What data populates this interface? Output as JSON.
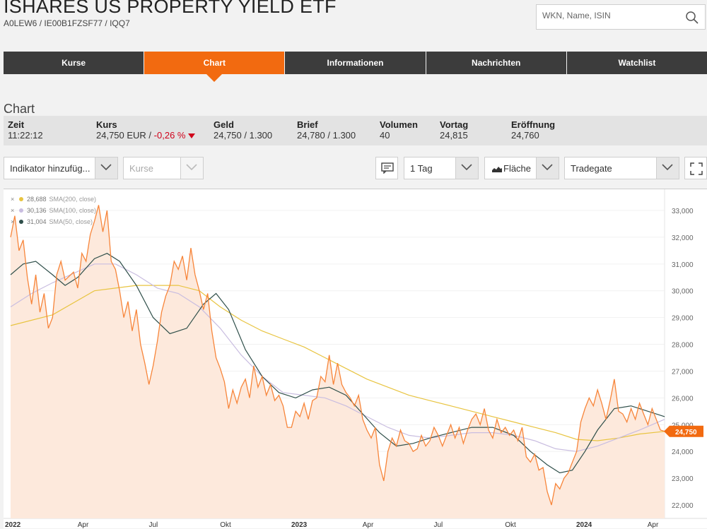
{
  "header": {
    "title": "ISHARES US PROPERTY YIELD ETF",
    "ids": "A0LEW6 /  IE00B1FZSF77  / IQQ7",
    "search_placeholder": "WKN, Name, ISIN"
  },
  "tabs": [
    {
      "label": "Kurse",
      "active": false
    },
    {
      "label": "Chart",
      "active": true
    },
    {
      "label": "Informationen",
      "active": false
    },
    {
      "label": "Nachrichten",
      "active": false
    },
    {
      "label": "Watchlist",
      "active": false
    }
  ],
  "section_title": "Chart",
  "quote": {
    "zeit_label": "Zeit",
    "zeit": "11:22:12",
    "kurs_label": "Kurs",
    "kurs": "24,750 EUR /",
    "kurs_change": "-0,26 %",
    "geld_label": "Geld",
    "geld": "24,750 / 1.300",
    "brief_label": "Brief",
    "brief": "24,780 / 1.300",
    "volumen_label": "Volumen",
    "volumen": "40",
    "vortag_label": "Vortag",
    "vortag": "24,815",
    "eroeffnung_label": "Eröffnung",
    "eroeffnung": "24,760"
  },
  "controls": {
    "indicator": "Indikator hinzufüg...",
    "kurse": "Kurse",
    "period": "1 Tag",
    "chart_type": "Fläche",
    "exchange": "Tradegate"
  },
  "legend": [
    {
      "value": "28,688",
      "name": "SMA(200, close)",
      "color": "#e8c440"
    },
    {
      "value": "30,136",
      "name": "SMA(100, close)",
      "color": "#c9bde0"
    },
    {
      "value": "31,004",
      "name": "SMA(50, close)",
      "color": "#2f4f4a"
    }
  ],
  "chart_data": {
    "type": "area",
    "x_ticks": [
      "2022",
      "Apr",
      "Jul",
      "Okt",
      "2023",
      "Apr",
      "Jul",
      "Okt",
      "2024",
      "Apr"
    ],
    "y_ticks": [
      "33,000",
      "32,000",
      "31,000",
      "30,000",
      "29,000",
      "28,000",
      "27,000",
      "26,000",
      "25,000",
      "24,000",
      "23,000",
      "22,000"
    ],
    "ylim": [
      21.6,
      33.4
    ],
    "xlim": [
      0,
      2.35
    ],
    "last_price_label": "24,750",
    "colors": {
      "price": "#f7853a",
      "area": "#fde9dc",
      "sma200": "#e8c440",
      "sma100": "#c9bde0",
      "sma50": "#2f4f4a",
      "badge": "#f26a10"
    },
    "price": [
      [
        0.0,
        32.0
      ],
      [
        0.01,
        32.8
      ],
      [
        0.02,
        31.5
      ],
      [
        0.03,
        31.9
      ],
      [
        0.04,
        30.5
      ],
      [
        0.05,
        29.5
      ],
      [
        0.06,
        30.6
      ],
      [
        0.07,
        29.2
      ],
      [
        0.08,
        29.9
      ],
      [
        0.09,
        28.6
      ],
      [
        0.1,
        29.0
      ],
      [
        0.11,
        30.6
      ],
      [
        0.12,
        31.1
      ],
      [
        0.13,
        30.4
      ],
      [
        0.15,
        30.7
      ],
      [
        0.16,
        30.1
      ],
      [
        0.17,
        31.4
      ],
      [
        0.18,
        31.1
      ],
      [
        0.19,
        32.1
      ],
      [
        0.2,
        32.6
      ],
      [
        0.21,
        33.2
      ],
      [
        0.22,
        32.2
      ],
      [
        0.23,
        33.0
      ],
      [
        0.24,
        31.1
      ],
      [
        0.25,
        30.8
      ],
      [
        0.26,
        30.0
      ],
      [
        0.27,
        29.0
      ],
      [
        0.28,
        29.6
      ],
      [
        0.29,
        28.5
      ],
      [
        0.3,
        29.3
      ],
      [
        0.31,
        28.0
      ],
      [
        0.32,
        27.3
      ],
      [
        0.33,
        26.5
      ],
      [
        0.34,
        27.2
      ],
      [
        0.35,
        28.1
      ],
      [
        0.36,
        29.2
      ],
      [
        0.37,
        29.8
      ],
      [
        0.38,
        30.2
      ],
      [
        0.39,
        31.1
      ],
      [
        0.4,
        30.8
      ],
      [
        0.41,
        31.3
      ],
      [
        0.42,
        30.4
      ],
      [
        0.43,
        31.6
      ],
      [
        0.44,
        30.6
      ],
      [
        0.45,
        30.0
      ],
      [
        0.46,
        29.3
      ],
      [
        0.47,
        29.9
      ],
      [
        0.48,
        28.5
      ],
      [
        0.49,
        27.5
      ],
      [
        0.5,
        27.1
      ],
      [
        0.51,
        26.6
      ],
      [
        0.52,
        25.6
      ],
      [
        0.53,
        26.3
      ],
      [
        0.54,
        25.8
      ],
      [
        0.55,
        26.4
      ],
      [
        0.56,
        26.7
      ],
      [
        0.57,
        26.0
      ],
      [
        0.58,
        27.2
      ],
      [
        0.59,
        26.4
      ],
      [
        0.6,
        26.8
      ],
      [
        0.61,
        26.1
      ],
      [
        0.62,
        26.5
      ],
      [
        0.63,
        25.9
      ],
      [
        0.64,
        26.1
      ],
      [
        0.65,
        25.7
      ],
      [
        0.66,
        24.9
      ],
      [
        0.67,
        24.9
      ],
      [
        0.68,
        25.5
      ],
      [
        0.69,
        25.3
      ],
      [
        0.7,
        25.8
      ],
      [
        0.71,
        25.2
      ],
      [
        0.72,
        25.9
      ],
      [
        0.73,
        26.0
      ],
      [
        0.74,
        26.8
      ],
      [
        0.75,
        26.6
      ],
      [
        0.76,
        27.6
      ],
      [
        0.77,
        26.5
      ],
      [
        0.78,
        27.3
      ],
      [
        0.79,
        26.5
      ],
      [
        0.8,
        26.2
      ],
      [
        0.81,
        26.0
      ],
      [
        0.82,
        25.7
      ],
      [
        0.83,
        26.1
      ],
      [
        0.84,
        25.2
      ],
      [
        0.85,
        24.8
      ],
      [
        0.86,
        24.5
      ],
      [
        0.87,
        24.9
      ],
      [
        0.88,
        23.5
      ],
      [
        0.89,
        22.9
      ],
      [
        0.9,
        24.0
      ],
      [
        0.91,
        24.5
      ],
      [
        0.92,
        24.2
      ],
      [
        0.93,
        24.8
      ],
      [
        0.94,
        24.4
      ],
      [
        0.95,
        24.3
      ],
      [
        0.96,
        24.0
      ],
      [
        0.97,
        24.1
      ],
      [
        0.98,
        24.6
      ],
      [
        0.99,
        24.2
      ],
      [
        1.0,
        24.4
      ],
      [
        1.01,
        24.9
      ],
      [
        1.02,
        24.6
      ],
      [
        1.03,
        24.2
      ],
      [
        1.04,
        24.6
      ],
      [
        1.05,
        25.0
      ],
      [
        1.06,
        24.5
      ],
      [
        1.07,
        24.9
      ],
      [
        1.08,
        24.3
      ],
      [
        1.09,
        24.8
      ],
      [
        1.1,
        25.2
      ],
      [
        1.11,
        25.4
      ],
      [
        1.12,
        25.0
      ],
      [
        1.13,
        25.6
      ],
      [
        1.14,
        24.8
      ],
      [
        1.15,
        24.5
      ],
      [
        1.16,
        25.2
      ],
      [
        1.17,
        24.7
      ],
      [
        1.18,
        24.9
      ],
      [
        1.19,
        24.6
      ],
      [
        1.2,
        24.8
      ],
      [
        1.21,
        24.4
      ],
      [
        1.22,
        24.9
      ],
      [
        1.23,
        23.8
      ],
      [
        1.24,
        23.6
      ],
      [
        1.25,
        23.9
      ],
      [
        1.26,
        23.3
      ],
      [
        1.27,
        23.4
      ],
      [
        1.28,
        22.5
      ],
      [
        1.29,
        22.0
      ],
      [
        1.3,
        22.8
      ],
      [
        1.31,
        22.6
      ],
      [
        1.32,
        23.0
      ],
      [
        1.33,
        23.2
      ],
      [
        1.34,
        23.6
      ],
      [
        1.35,
        24.0
      ],
      [
        1.36,
        25.1
      ],
      [
        1.37,
        25.6
      ],
      [
        1.38,
        26.0
      ],
      [
        1.39,
        25.7
      ],
      [
        1.4,
        26.3
      ],
      [
        1.41,
        25.8
      ],
      [
        1.42,
        25.2
      ],
      [
        1.43,
        25.9
      ],
      [
        1.44,
        26.7
      ],
      [
        1.45,
        25.5
      ],
      [
        1.46,
        25.4
      ],
      [
        1.47,
        25.1
      ],
      [
        1.48,
        25.6
      ],
      [
        1.49,
        25.2
      ],
      [
        1.5,
        25.8
      ],
      [
        1.51,
        25.4
      ],
      [
        1.52,
        25.0
      ],
      [
        1.53,
        25.6
      ],
      [
        1.54,
        25.2
      ],
      [
        1.55,
        24.8
      ],
      [
        1.56,
        24.75
      ]
    ],
    "sma200": [
      [
        0.0,
        28.7
      ],
      [
        0.1,
        29.1
      ],
      [
        0.2,
        30.0
      ],
      [
        0.25,
        30.1
      ],
      [
        0.3,
        30.2
      ],
      [
        0.4,
        30.2
      ],
      [
        0.45,
        30.0
      ],
      [
        0.5,
        29.4
      ],
      [
        0.55,
        28.9
      ],
      [
        0.6,
        28.5
      ],
      [
        0.65,
        28.2
      ],
      [
        0.7,
        27.9
      ],
      [
        0.75,
        27.5
      ],
      [
        0.8,
        27.1
      ],
      [
        0.85,
        26.7
      ],
      [
        0.9,
        26.4
      ],
      [
        0.95,
        26.1
      ],
      [
        1.0,
        25.9
      ],
      [
        1.05,
        25.7
      ],
      [
        1.1,
        25.5
      ],
      [
        1.15,
        25.3
      ],
      [
        1.2,
        25.1
      ],
      [
        1.25,
        24.9
      ],
      [
        1.3,
        24.7
      ],
      [
        1.35,
        24.45
      ],
      [
        1.4,
        24.4
      ],
      [
        1.45,
        24.5
      ],
      [
        1.5,
        24.65
      ],
      [
        1.56,
        24.75
      ]
    ],
    "sma100": [
      [
        0.0,
        29.4
      ],
      [
        0.05,
        29.9
      ],
      [
        0.1,
        30.3
      ],
      [
        0.2,
        31.0
      ],
      [
        0.25,
        31.0
      ],
      [
        0.3,
        30.6
      ],
      [
        0.35,
        30.1
      ],
      [
        0.4,
        29.9
      ],
      [
        0.45,
        29.4
      ],
      [
        0.5,
        28.6
      ],
      [
        0.55,
        27.6
      ],
      [
        0.6,
        26.8
      ],
      [
        0.65,
        26.2
      ],
      [
        0.7,
        26.1
      ],
      [
        0.75,
        26.0
      ],
      [
        0.8,
        25.7
      ],
      [
        0.85,
        25.3
      ],
      [
        0.9,
        24.9
      ],
      [
        0.95,
        24.6
      ],
      [
        1.0,
        24.5
      ],
      [
        1.05,
        24.6
      ],
      [
        1.1,
        24.7
      ],
      [
        1.15,
        24.7
      ],
      [
        1.2,
        24.6
      ],
      [
        1.25,
        24.4
      ],
      [
        1.3,
        24.1
      ],
      [
        1.35,
        24.0
      ],
      [
        1.4,
        24.2
      ],
      [
        1.45,
        24.5
      ],
      [
        1.5,
        24.8
      ],
      [
        1.56,
        25.2
      ]
    ],
    "sma50": [
      [
        0.0,
        30.6
      ],
      [
        0.03,
        31.0
      ],
      [
        0.06,
        31.1
      ],
      [
        0.1,
        30.6
      ],
      [
        0.13,
        30.2
      ],
      [
        0.16,
        30.5
      ],
      [
        0.2,
        31.2
      ],
      [
        0.23,
        31.4
      ],
      [
        0.26,
        31.1
      ],
      [
        0.3,
        30.2
      ],
      [
        0.34,
        29.0
      ],
      [
        0.38,
        28.4
      ],
      [
        0.42,
        28.6
      ],
      [
        0.46,
        29.5
      ],
      [
        0.49,
        29.9
      ],
      [
        0.52,
        29.3
      ],
      [
        0.56,
        27.8
      ],
      [
        0.6,
        26.8
      ],
      [
        0.64,
        26.2
      ],
      [
        0.68,
        26.0
      ],
      [
        0.72,
        26.3
      ],
      [
        0.76,
        26.4
      ],
      [
        0.8,
        26.1
      ],
      [
        0.84,
        25.4
      ],
      [
        0.88,
        24.7
      ],
      [
        0.92,
        24.2
      ],
      [
        0.96,
        24.3
      ],
      [
        1.0,
        24.5
      ],
      [
        1.05,
        24.7
      ],
      [
        1.1,
        24.9
      ],
      [
        1.15,
        24.9
      ],
      [
        1.2,
        24.6
      ],
      [
        1.24,
        24.0
      ],
      [
        1.28,
        23.5
      ],
      [
        1.31,
        23.2
      ],
      [
        1.34,
        23.3
      ],
      [
        1.37,
        24.0
      ],
      [
        1.4,
        24.8
      ],
      [
        1.44,
        25.6
      ],
      [
        1.48,
        25.7
      ],
      [
        1.52,
        25.5
      ],
      [
        1.56,
        25.3
      ]
    ]
  }
}
